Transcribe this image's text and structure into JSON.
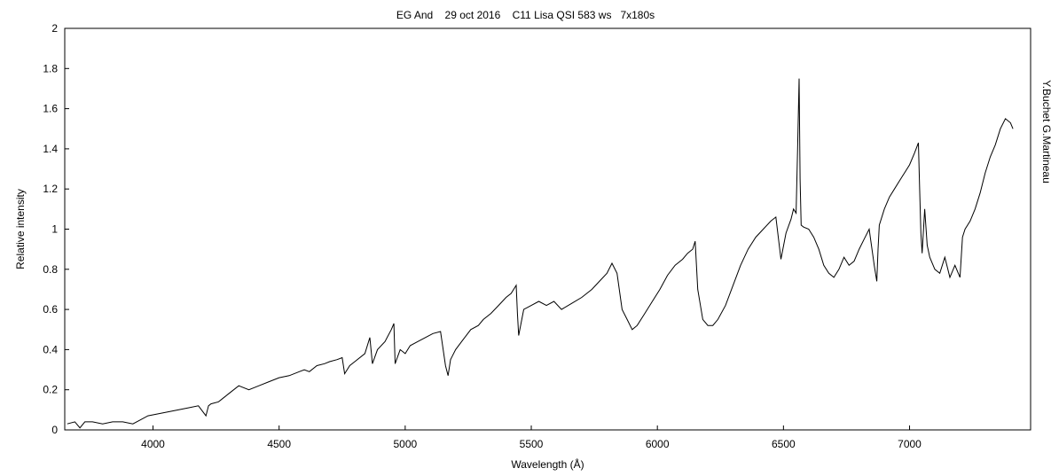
{
  "chart_data": {
    "type": "line",
    "title": "EG And    29 oct 2016    C11 Lisa QSI 583 ws   7x180s",
    "xlabel": "Wavelength (Å)",
    "ylabel": "Relative intensity",
    "right_label": "Y.Buchet  G.Martineau",
    "xlim": [
      3650,
      7480
    ],
    "ylim": [
      0,
      2
    ],
    "x_ticks": [
      4000,
      4500,
      5000,
      5500,
      6000,
      6500,
      7000
    ],
    "y_ticks": [
      0,
      0.2,
      0.4,
      0.6,
      0.8,
      1,
      1.2,
      1.4,
      1.6,
      1.8,
      2
    ],
    "x_tick_labels": [
      "4000",
      "4500",
      "5000",
      "5500",
      "6000",
      "6500",
      "7000"
    ],
    "y_tick_labels": [
      "0",
      "0.2",
      "0.4",
      "0.6",
      "0.8",
      "1",
      "1.2",
      "1.4",
      "1.6",
      "1.8",
      "2"
    ],
    "grid": false,
    "line_color": "#000000",
    "series": [
      {
        "x": [
          3660,
          3690,
          3710,
          3730,
          3760,
          3800,
          3840,
          3880,
          3920,
          3950,
          3980,
          4020,
          4060,
          4100,
          4140,
          4180,
          4210,
          4220,
          4230,
          4260,
          4300,
          4340,
          4380,
          4420,
          4460,
          4500,
          4540,
          4580,
          4600,
          4620,
          4650,
          4680,
          4700,
          4730,
          4750,
          4760,
          4780,
          4800,
          4840,
          4860,
          4870,
          4890,
          4920,
          4945,
          4955,
          4960,
          4980,
          5000,
          5020,
          5050,
          5080,
          5110,
          5140,
          5160,
          5170,
          5180,
          5200,
          5230,
          5260,
          5290,
          5310,
          5340,
          5370,
          5400,
          5420,
          5440,
          5445,
          5450,
          5470,
          5500,
          5530,
          5560,
          5590,
          5620,
          5660,
          5700,
          5740,
          5770,
          5800,
          5820,
          5840,
          5860,
          5880,
          5900,
          5920,
          5950,
          5980,
          6010,
          6040,
          6070,
          6100,
          6120,
          6140,
          6150,
          6160,
          6180,
          6200,
          6220,
          6240,
          6270,
          6300,
          6330,
          6360,
          6390,
          6420,
          6450,
          6470,
          6490,
          6510,
          6530,
          6540,
          6550,
          6556,
          6562,
          6566,
          6570,
          6580,
          6600,
          6620,
          6640,
          6660,
          6680,
          6700,
          6720,
          6740,
          6760,
          6780,
          6800,
          6820,
          6840,
          6860,
          6870,
          6875,
          6880,
          6900,
          6920,
          6940,
          6960,
          6980,
          7000,
          7020,
          7035,
          7040,
          7045,
          7050,
          7060,
          7070,
          7080,
          7100,
          7120,
          7140,
          7160,
          7180,
          7200,
          7210,
          7220,
          7240,
          7260,
          7280,
          7300,
          7320,
          7340,
          7360,
          7380,
          7400,
          7410
        ],
        "y": [
          0.03,
          0.04,
          0.01,
          0.04,
          0.04,
          0.03,
          0.04,
          0.04,
          0.03,
          0.05,
          0.07,
          0.08,
          0.09,
          0.1,
          0.11,
          0.12,
          0.07,
          0.12,
          0.13,
          0.14,
          0.18,
          0.22,
          0.2,
          0.22,
          0.24,
          0.26,
          0.27,
          0.29,
          0.3,
          0.29,
          0.32,
          0.33,
          0.34,
          0.35,
          0.36,
          0.28,
          0.32,
          0.34,
          0.38,
          0.46,
          0.33,
          0.4,
          0.44,
          0.5,
          0.53,
          0.33,
          0.4,
          0.38,
          0.42,
          0.44,
          0.46,
          0.48,
          0.49,
          0.32,
          0.27,
          0.35,
          0.4,
          0.45,
          0.5,
          0.52,
          0.55,
          0.58,
          0.62,
          0.66,
          0.68,
          0.72,
          0.58,
          0.47,
          0.6,
          0.62,
          0.64,
          0.62,
          0.64,
          0.6,
          0.63,
          0.66,
          0.7,
          0.74,
          0.78,
          0.83,
          0.78,
          0.6,
          0.55,
          0.5,
          0.52,
          0.58,
          0.64,
          0.7,
          0.77,
          0.82,
          0.85,
          0.88,
          0.9,
          0.94,
          0.7,
          0.55,
          0.52,
          0.52,
          0.55,
          0.62,
          0.72,
          0.82,
          0.9,
          0.96,
          1.0,
          1.04,
          1.06,
          0.85,
          0.98,
          1.05,
          1.1,
          1.08,
          1.4,
          1.75,
          1.25,
          1.02,
          1.01,
          1.0,
          0.96,
          0.9,
          0.82,
          0.78,
          0.76,
          0.8,
          0.86,
          0.82,
          0.84,
          0.9,
          0.95,
          1.0,
          0.82,
          0.74,
          0.9,
          1.02,
          1.1,
          1.16,
          1.2,
          1.24,
          1.28,
          1.32,
          1.38,
          1.43,
          1.2,
          0.98,
          0.88,
          1.1,
          0.92,
          0.86,
          0.8,
          0.78,
          0.86,
          0.76,
          0.82,
          0.76,
          0.96,
          1.0,
          1.04,
          1.1,
          1.18,
          1.28,
          1.36,
          1.42,
          1.5,
          1.55,
          1.53,
          1.5
        ]
      }
    ]
  }
}
